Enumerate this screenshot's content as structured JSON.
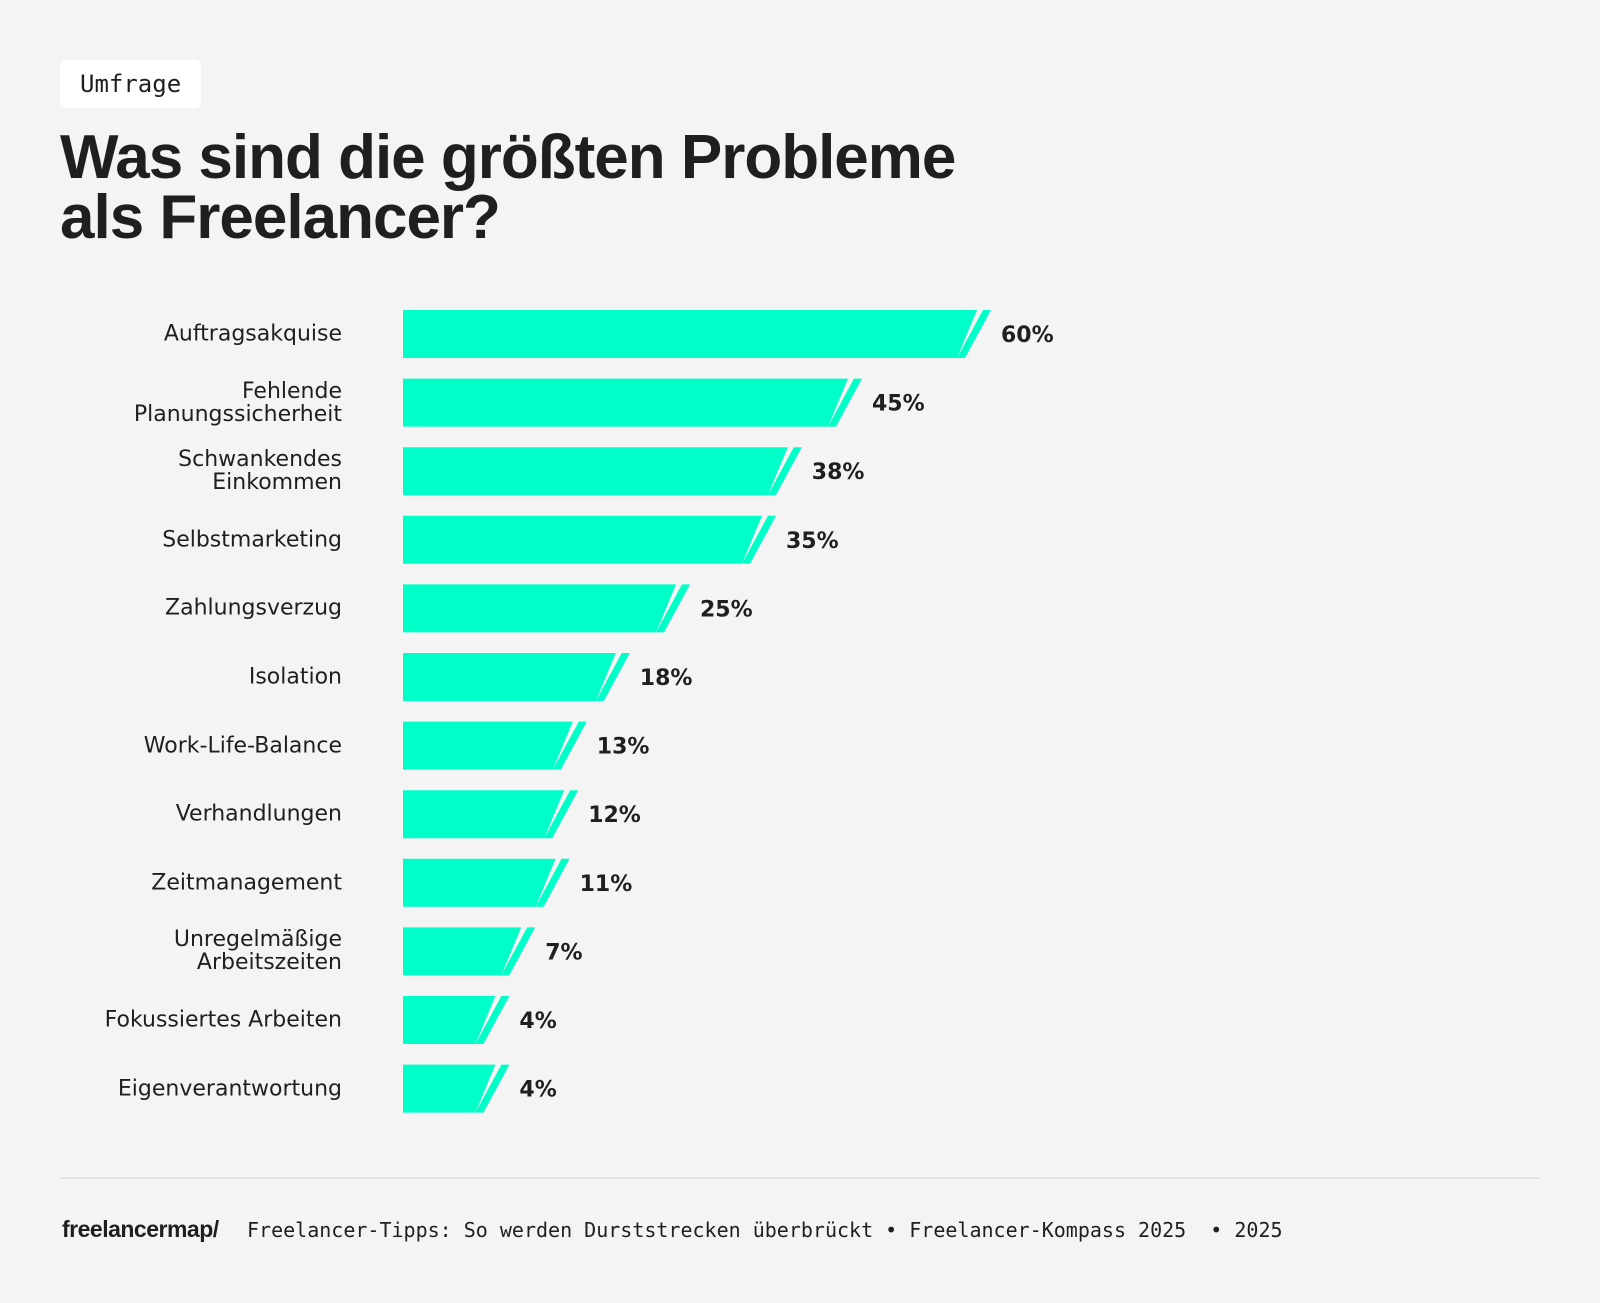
{
  "chart_data": {
    "type": "bar",
    "orientation": "horizontal",
    "tag": "Umfrage",
    "title": "Was sind die größten Probleme\nals Freelancer?",
    "categories": [
      "Auftragsakquise",
      "Fehlende\nPlanungssicherheit",
      "Schwankendes\nEinkommen",
      "Selbstmarketing",
      "Zahlungsverzug",
      "Isolation",
      "Work-Life-Balance",
      "Verhandlungen",
      "Zeitmanagement",
      "Unregelmäßige\nArbeitszeiten",
      "Fokussiertes Arbeiten",
      "Eigenverantwortung"
    ],
    "values": [
      60,
      45,
      38,
      35,
      25,
      18,
      13,
      12,
      11,
      7,
      4,
      4
    ],
    "value_labels": [
      "60%",
      "45%",
      "38%",
      "35%",
      "25%",
      "18%",
      "13%",
      "12%",
      "11%",
      "7%",
      "4%",
      "4%"
    ],
    "color": "#00ffc8",
    "logo": "freelancermap/",
    "source": "Freelancer-Tipps: So werden Durststrecken überbrückt • Freelancer-Kompass 2025  • 2025"
  }
}
